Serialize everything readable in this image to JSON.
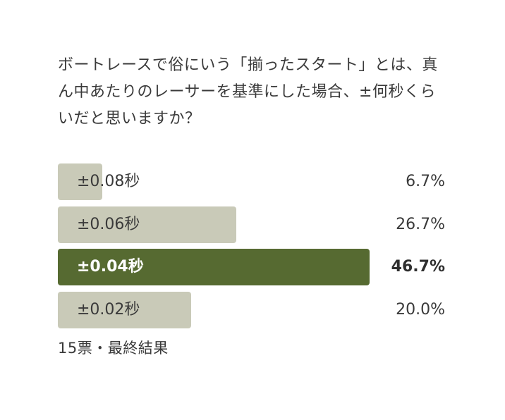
{
  "poll": {
    "question": "ボートレースで俗にいう「揃ったスタート」とは、真ん中あたりのレーサーを基準にした場合、±何秒くらいだと思いますか？",
    "options": [
      {
        "label": "±0.08秒",
        "percent_text": "6.7%",
        "percent": 6.7,
        "selected": false
      },
      {
        "label": "±0.06秒",
        "percent_text": "26.7%",
        "percent": 26.7,
        "selected": false
      },
      {
        "label": "±0.04秒",
        "percent_text": "46.7%",
        "percent": 46.7,
        "selected": true
      },
      {
        "label": "±0.02秒",
        "percent_text": "20.0%",
        "percent": 20.0,
        "selected": false
      }
    ],
    "footer": "15票・最終結果"
  },
  "colors": {
    "bar": "#c9cab8",
    "bar_selected": "#566a31",
    "text": "#3a3a3a"
  }
}
